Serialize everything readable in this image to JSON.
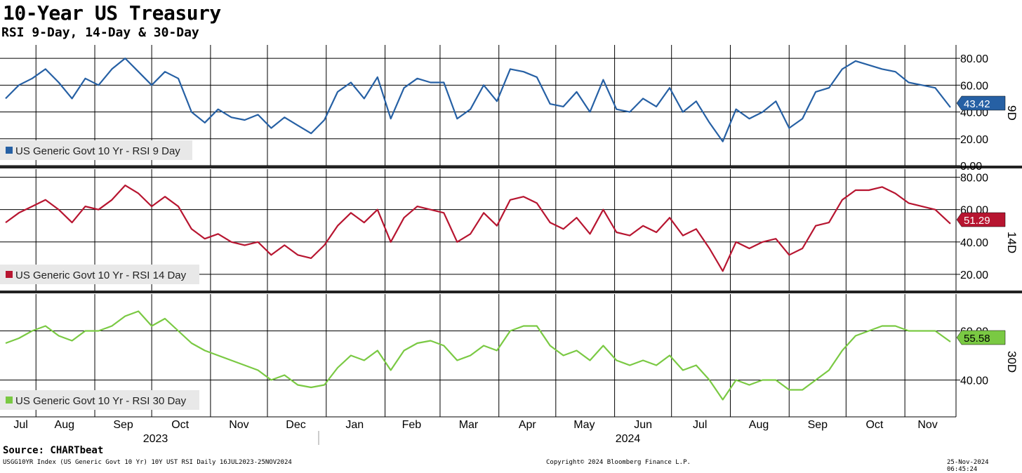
{
  "chart_data": {
    "type": "line",
    "title": "10-Year US Treasury",
    "subtitle": "RSI 9-Day, 14-Day & 30-Day",
    "x_range": [
      "2023-07-16",
      "2024-11-25"
    ],
    "months": [
      "Jul",
      "Aug",
      "Sep",
      "Oct",
      "Nov",
      "Dec",
      "Jan",
      "Feb",
      "Mar",
      "Apr",
      "May",
      "Jun",
      "Jul",
      "Aug",
      "Sep",
      "Oct",
      "Nov"
    ],
    "years": [
      "2023",
      "2024"
    ],
    "panels": [
      {
        "side_label": "9D",
        "legend": "US Generic Govt 10 Yr - RSI 9 Day",
        "color": "#2660a4",
        "last_value": "43.42",
        "ylim": [
          0,
          90
        ],
        "yticks": [
          "80.00",
          "60.00",
          "40.00",
          "20.00",
          "0.00"
        ],
        "series": [
          {
            "name": "US Generic Govt 10 Yr - RSI 9 Day",
            "x": [
              "2023-07-16",
              "2023-07-23",
              "2023-07-30",
              "2023-08-06",
              "2023-08-13",
              "2023-08-20",
              "2023-08-27",
              "2023-09-03",
              "2023-09-10",
              "2023-09-17",
              "2023-09-24",
              "2023-10-01",
              "2023-10-08",
              "2023-10-15",
              "2023-10-22",
              "2023-10-29",
              "2023-11-05",
              "2023-11-12",
              "2023-11-19",
              "2023-11-26",
              "2023-12-03",
              "2023-12-10",
              "2023-12-17",
              "2023-12-24",
              "2023-12-31",
              "2024-01-07",
              "2024-01-14",
              "2024-01-21",
              "2024-01-28",
              "2024-02-04",
              "2024-02-11",
              "2024-02-18",
              "2024-02-25",
              "2024-03-03",
              "2024-03-10",
              "2024-03-17",
              "2024-03-24",
              "2024-03-31",
              "2024-04-07",
              "2024-04-14",
              "2024-04-21",
              "2024-04-28",
              "2024-05-05",
              "2024-05-12",
              "2024-05-19",
              "2024-05-26",
              "2024-06-02",
              "2024-06-09",
              "2024-06-16",
              "2024-06-23",
              "2024-06-30",
              "2024-07-07",
              "2024-07-14",
              "2024-07-21",
              "2024-07-28",
              "2024-08-04",
              "2024-08-11",
              "2024-08-18",
              "2024-08-25",
              "2024-09-01",
              "2024-09-08",
              "2024-09-15",
              "2024-09-22",
              "2024-09-29",
              "2024-10-06",
              "2024-10-13",
              "2024-10-20",
              "2024-10-27",
              "2024-11-03",
              "2024-11-10",
              "2024-11-17",
              "2024-11-25"
            ],
            "values": [
              50,
              60,
              65,
              72,
              62,
              50,
              65,
              60,
              72,
              80,
              70,
              60,
              70,
              65,
              40,
              32,
              42,
              36,
              34,
              38,
              28,
              36,
              30,
              24,
              34,
              55,
              62,
              50,
              66,
              35,
              58,
              65,
              62,
              62,
              35,
              42,
              60,
              48,
              72,
              70,
              66,
              46,
              44,
              55,
              40,
              64,
              42,
              40,
              50,
              44,
              58,
              40,
              48,
              32,
              18,
              42,
              35,
              40,
              48,
              28,
              35,
              55,
              58,
              72,
              78,
              75,
              72,
              70,
              62,
              60,
              58,
              43.42
            ]
          }
        ]
      },
      {
        "side_label": "14D",
        "legend": "US Generic Govt 10 Yr - RSI 14 Day",
        "color": "#b71530",
        "last_value": "51.29",
        "ylim": [
          10,
          85
        ],
        "yticks": [
          "80.00",
          "60.00",
          "40.00",
          "20.00"
        ],
        "series": [
          {
            "name": "US Generic Govt 10 Yr - RSI 14 Day",
            "x": [
              "2023-07-16",
              "2023-07-23",
              "2023-07-30",
              "2023-08-06",
              "2023-08-13",
              "2023-08-20",
              "2023-08-27",
              "2023-09-03",
              "2023-09-10",
              "2023-09-17",
              "2023-09-24",
              "2023-10-01",
              "2023-10-08",
              "2023-10-15",
              "2023-10-22",
              "2023-10-29",
              "2023-11-05",
              "2023-11-12",
              "2023-11-19",
              "2023-11-26",
              "2023-12-03",
              "2023-12-10",
              "2023-12-17",
              "2023-12-24",
              "2023-12-31",
              "2024-01-07",
              "2024-01-14",
              "2024-01-21",
              "2024-01-28",
              "2024-02-04",
              "2024-02-11",
              "2024-02-18",
              "2024-02-25",
              "2024-03-03",
              "2024-03-10",
              "2024-03-17",
              "2024-03-24",
              "2024-03-31",
              "2024-04-07",
              "2024-04-14",
              "2024-04-21",
              "2024-04-28",
              "2024-05-05",
              "2024-05-12",
              "2024-05-19",
              "2024-05-26",
              "2024-06-02",
              "2024-06-09",
              "2024-06-16",
              "2024-06-23",
              "2024-06-30",
              "2024-07-07",
              "2024-07-14",
              "2024-07-21",
              "2024-07-28",
              "2024-08-04",
              "2024-08-11",
              "2024-08-18",
              "2024-08-25",
              "2024-09-01",
              "2024-09-08",
              "2024-09-15",
              "2024-09-22",
              "2024-09-29",
              "2024-10-06",
              "2024-10-13",
              "2024-10-20",
              "2024-10-27",
              "2024-11-03",
              "2024-11-10",
              "2024-11-17",
              "2024-11-25"
            ],
            "values": [
              52,
              58,
              62,
              66,
              60,
              52,
              62,
              60,
              66,
              75,
              70,
              62,
              68,
              62,
              48,
              42,
              45,
              40,
              38,
              40,
              32,
              38,
              32,
              30,
              38,
              50,
              58,
              52,
              60,
              40,
              55,
              62,
              60,
              58,
              40,
              45,
              58,
              50,
              66,
              68,
              64,
              52,
              48,
              55,
              45,
              60,
              46,
              44,
              50,
              46,
              55,
              44,
              48,
              36,
              22,
              40,
              36,
              40,
              42,
              32,
              36,
              50,
              52,
              66,
              72,
              72,
              74,
              70,
              64,
              62,
              60,
              51.29
            ]
          }
        ]
      },
      {
        "side_label": "30D",
        "legend": "US Generic Govt 10 Yr - RSI 30 Day",
        "color": "#7ac943",
        "last_value": "55.58",
        "ylim": [
          25,
          75
        ],
        "yticks": [
          "60.00",
          "40.00"
        ],
        "series": [
          {
            "name": "US Generic Govt 10 Yr - RSI 30 Day",
            "x": [
              "2023-07-16",
              "2023-07-23",
              "2023-07-30",
              "2023-08-06",
              "2023-08-13",
              "2023-08-20",
              "2023-08-27",
              "2023-09-03",
              "2023-09-10",
              "2023-09-17",
              "2023-09-24",
              "2023-10-01",
              "2023-10-08",
              "2023-10-15",
              "2023-10-22",
              "2023-10-29",
              "2023-11-05",
              "2023-11-12",
              "2023-11-19",
              "2023-11-26",
              "2023-12-03",
              "2023-12-10",
              "2023-12-17",
              "2023-12-24",
              "2023-12-31",
              "2024-01-07",
              "2024-01-14",
              "2024-01-21",
              "2024-01-28",
              "2024-02-04",
              "2024-02-11",
              "2024-02-18",
              "2024-02-25",
              "2024-03-03",
              "2024-03-10",
              "2024-03-17",
              "2024-03-24",
              "2024-03-31",
              "2024-04-07",
              "2024-04-14",
              "2024-04-21",
              "2024-04-28",
              "2024-05-05",
              "2024-05-12",
              "2024-05-19",
              "2024-05-26",
              "2024-06-02",
              "2024-06-09",
              "2024-06-16",
              "2024-06-23",
              "2024-06-30",
              "2024-07-07",
              "2024-07-14",
              "2024-07-21",
              "2024-07-28",
              "2024-08-04",
              "2024-08-11",
              "2024-08-18",
              "2024-08-25",
              "2024-09-01",
              "2024-09-08",
              "2024-09-15",
              "2024-09-22",
              "2024-09-29",
              "2024-10-06",
              "2024-10-13",
              "2024-10-20",
              "2024-10-27",
              "2024-11-03",
              "2024-11-10",
              "2024-11-17",
              "2024-11-25"
            ],
            "values": [
              55,
              57,
              60,
              62,
              58,
              56,
              60,
              60,
              62,
              66,
              68,
              62,
              65,
              60,
              55,
              52,
              50,
              48,
              46,
              44,
              40,
              42,
              38,
              37,
              38,
              45,
              50,
              48,
              52,
              44,
              52,
              55,
              56,
              54,
              48,
              50,
              54,
              52,
              60,
              62,
              62,
              54,
              50,
              52,
              48,
              54,
              48,
              46,
              48,
              46,
              50,
              44,
              46,
              40,
              32,
              40,
              38,
              40,
              40,
              36,
              36,
              40,
              44,
              52,
              58,
              60,
              62,
              62,
              60,
              60,
              60,
              55.58
            ]
          }
        ]
      }
    ]
  },
  "source": "Source: CHARTbeat",
  "footer": {
    "left": "USGG10YR Index (US Generic Govt 10 Yr) 10Y UST RSI  Daily 16JUL2023-25NOV2024",
    "center": "Copyright© 2024 Bloomberg Finance L.P.",
    "right": "25-Nov-2024 06:45:24"
  }
}
